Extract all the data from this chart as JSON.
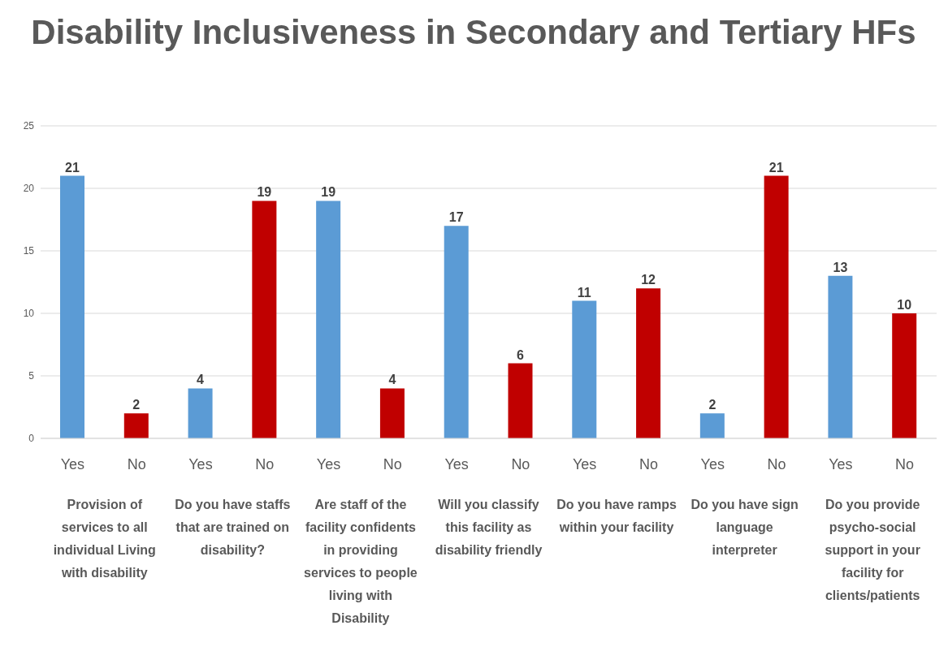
{
  "chart_data": {
    "type": "bar",
    "title": "Disability Inclusiveness in Secondary and Tertiary HFs",
    "categories": [
      "Yes",
      "No",
      "Yes",
      "No",
      "Yes",
      "No",
      "Yes",
      "No",
      "Yes",
      "No",
      "Yes",
      "No",
      "Yes",
      "No"
    ],
    "values": [
      21,
      2,
      4,
      19,
      19,
      4,
      17,
      6,
      11,
      12,
      2,
      21,
      13,
      10
    ],
    "colors": [
      "#5b9bd5",
      "#c00000",
      "#5b9bd5",
      "#c00000",
      "#5b9bd5",
      "#c00000",
      "#5b9bd5",
      "#c00000",
      "#5b9bd5",
      "#c00000",
      "#5b9bd5",
      "#c00000",
      "#5b9bd5",
      "#c00000"
    ],
    "annotations": [
      "Provision of services to all individual Living with disability",
      "Do you have staffs that are trained on disability?",
      "Are staff of the facility confidents in providing services to people living with Disability",
      "Will you classify this facility as disability friendly",
      "Do you have ramps within your facility",
      "Do you have sign language interpreter",
      "Do you provide psycho-social support in your facility for clients/patients"
    ],
    "ylim": [
      0,
      25
    ],
    "yticks": [
      0,
      5,
      10,
      15,
      20,
      25
    ],
    "grid": "y",
    "data_labels": true
  }
}
